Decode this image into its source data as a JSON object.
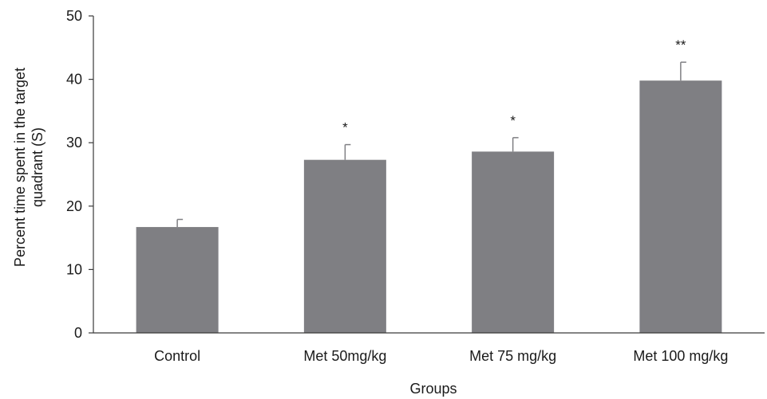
{
  "chart_data": {
    "type": "bar",
    "categories": [
      "Control",
      "Met 50mg/kg",
      "Met 75 mg/kg",
      "Met 100 mg/kg"
    ],
    "values": [
      16.7,
      27.3,
      28.6,
      39.8
    ],
    "errors": [
      1.2,
      2.4,
      2.2,
      2.9
    ],
    "significance": [
      "",
      "*",
      "*",
      "**"
    ],
    "xlabel": "Groups",
    "ylabel_lines": [
      "Percent time spent in the target",
      "quadrant (S)"
    ],
    "ylim": [
      0,
      50
    ],
    "yticks": [
      0,
      10,
      20,
      30,
      40,
      50
    ],
    "grid": false,
    "legend": "none",
    "bar_color": "#7f7f83",
    "axis_color": "#3a3a3a",
    "text_color": "#1a1a1a"
  }
}
